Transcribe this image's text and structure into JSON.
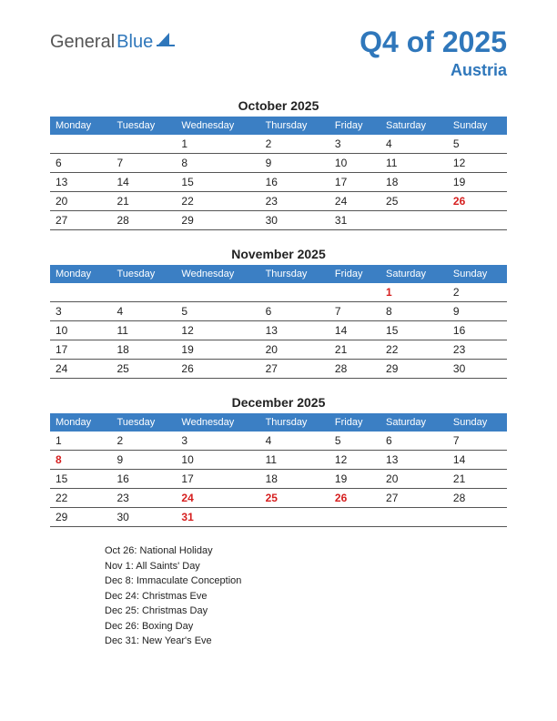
{
  "colors": {
    "brand_blue": "#2f77bb",
    "header_bg": "#3b7fc4",
    "text": "#222222",
    "holiday": "#d61f1f",
    "row_border": "#555555",
    "white": "#ffffff"
  },
  "logo": {
    "text_general": "General",
    "text_blue": "Blue"
  },
  "header": {
    "title": "Q4 of 2025",
    "subtitle": "Austria"
  },
  "day_headers": [
    "Monday",
    "Tuesday",
    "Wednesday",
    "Thursday",
    "Friday",
    "Saturday",
    "Sunday"
  ],
  "months": [
    {
      "title": "October 2025",
      "weeks": [
        [
          {
            "d": ""
          },
          {
            "d": ""
          },
          {
            "d": "1"
          },
          {
            "d": "2"
          },
          {
            "d": "3"
          },
          {
            "d": "4"
          },
          {
            "d": "5"
          }
        ],
        [
          {
            "d": "6"
          },
          {
            "d": "7"
          },
          {
            "d": "8"
          },
          {
            "d": "9"
          },
          {
            "d": "10"
          },
          {
            "d": "11"
          },
          {
            "d": "12"
          }
        ],
        [
          {
            "d": "13"
          },
          {
            "d": "14"
          },
          {
            "d": "15"
          },
          {
            "d": "16"
          },
          {
            "d": "17"
          },
          {
            "d": "18"
          },
          {
            "d": "19"
          }
        ],
        [
          {
            "d": "20"
          },
          {
            "d": "21"
          },
          {
            "d": "22"
          },
          {
            "d": "23"
          },
          {
            "d": "24"
          },
          {
            "d": "25"
          },
          {
            "d": "26",
            "h": true
          }
        ],
        [
          {
            "d": "27"
          },
          {
            "d": "28"
          },
          {
            "d": "29"
          },
          {
            "d": "30"
          },
          {
            "d": "31"
          },
          {
            "d": ""
          },
          {
            "d": ""
          }
        ]
      ]
    },
    {
      "title": "November 2025",
      "weeks": [
        [
          {
            "d": ""
          },
          {
            "d": ""
          },
          {
            "d": ""
          },
          {
            "d": ""
          },
          {
            "d": ""
          },
          {
            "d": "1",
            "h": true
          },
          {
            "d": "2"
          }
        ],
        [
          {
            "d": "3"
          },
          {
            "d": "4"
          },
          {
            "d": "5"
          },
          {
            "d": "6"
          },
          {
            "d": "7"
          },
          {
            "d": "8"
          },
          {
            "d": "9"
          }
        ],
        [
          {
            "d": "10"
          },
          {
            "d": "11"
          },
          {
            "d": "12"
          },
          {
            "d": "13"
          },
          {
            "d": "14"
          },
          {
            "d": "15"
          },
          {
            "d": "16"
          }
        ],
        [
          {
            "d": "17"
          },
          {
            "d": "18"
          },
          {
            "d": "19"
          },
          {
            "d": "20"
          },
          {
            "d": "21"
          },
          {
            "d": "22"
          },
          {
            "d": "23"
          }
        ],
        [
          {
            "d": "24"
          },
          {
            "d": "25"
          },
          {
            "d": "26"
          },
          {
            "d": "27"
          },
          {
            "d": "28"
          },
          {
            "d": "29"
          },
          {
            "d": "30"
          }
        ]
      ]
    },
    {
      "title": "December 2025",
      "weeks": [
        [
          {
            "d": "1"
          },
          {
            "d": "2"
          },
          {
            "d": "3"
          },
          {
            "d": "4"
          },
          {
            "d": "5"
          },
          {
            "d": "6"
          },
          {
            "d": "7"
          }
        ],
        [
          {
            "d": "8",
            "h": true
          },
          {
            "d": "9"
          },
          {
            "d": "10"
          },
          {
            "d": "11"
          },
          {
            "d": "12"
          },
          {
            "d": "13"
          },
          {
            "d": "14"
          }
        ],
        [
          {
            "d": "15"
          },
          {
            "d": "16"
          },
          {
            "d": "17"
          },
          {
            "d": "18"
          },
          {
            "d": "19"
          },
          {
            "d": "20"
          },
          {
            "d": "21"
          }
        ],
        [
          {
            "d": "22"
          },
          {
            "d": "23"
          },
          {
            "d": "24",
            "h": true
          },
          {
            "d": "25",
            "h": true
          },
          {
            "d": "26",
            "h": true
          },
          {
            "d": "27"
          },
          {
            "d": "28"
          }
        ],
        [
          {
            "d": "29"
          },
          {
            "d": "30"
          },
          {
            "d": "31",
            "h": true
          },
          {
            "d": ""
          },
          {
            "d": ""
          },
          {
            "d": ""
          },
          {
            "d": ""
          }
        ]
      ]
    }
  ],
  "holidays": [
    "Oct 26: National Holiday",
    "Nov 1: All Saints' Day",
    "Dec 8: Immaculate Conception",
    "Dec 24: Christmas Eve",
    "Dec 25: Christmas Day",
    "Dec 26: Boxing Day",
    "Dec 31: New Year's Eve"
  ]
}
